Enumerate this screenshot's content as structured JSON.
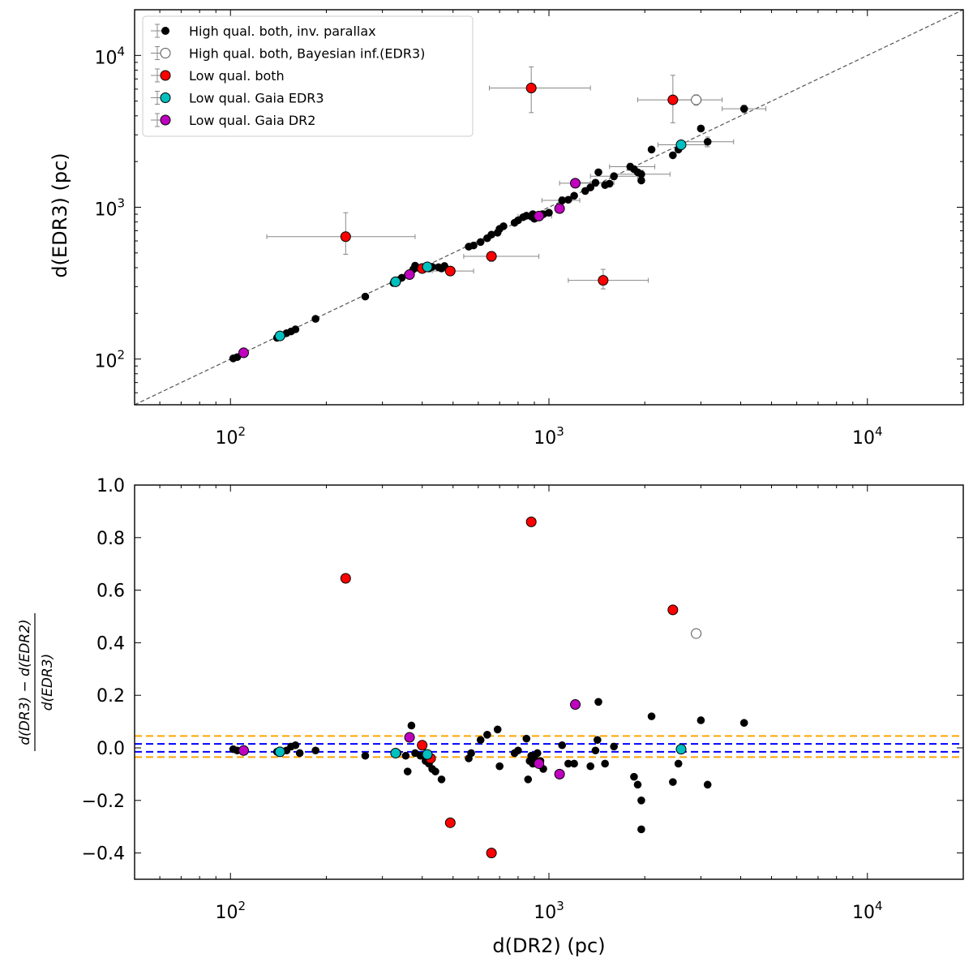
{
  "chart_data": [
    {
      "type": "scatter",
      "panel": "top",
      "xlabel": "d(DR2) (pc)",
      "ylabel": "d(EDR3) (pc)",
      "xscale": "log",
      "yscale": "log",
      "xlim": [
        50,
        20000
      ],
      "ylim": [
        50,
        20000
      ],
      "x_tick_labels": [
        {
          "base": "10",
          "exp": "2",
          "value": 100
        },
        {
          "base": "10",
          "exp": "3",
          "value": 1000
        },
        {
          "base": "10",
          "exp": "4",
          "value": 10000
        }
      ],
      "y_tick_labels": [
        {
          "base": "10",
          "exp": "2",
          "value": 100
        },
        {
          "base": "10",
          "exp": "3",
          "value": 1000
        },
        {
          "base": "10",
          "exp": "4",
          "value": 10000
        }
      ],
      "reference_line": "y = x (dashed)",
      "legend": {
        "placement": "top-left",
        "entries": [
          {
            "label": "High qual. both, inv. parallax",
            "color": "#000000",
            "marker": "small-filled"
          },
          {
            "label": "High qual. both, Bayesian inf.(EDR3)",
            "color": "#ffffff",
            "marker": "open"
          },
          {
            "label": "Low qual. both",
            "color": "#ff0000",
            "marker": "filled"
          },
          {
            "label": "Low qual. Gaia EDR3",
            "color": "#00bfbf",
            "marker": "filled"
          },
          {
            "label": "Low qual. Gaia DR2",
            "color": "#bf00bf",
            "marker": "filled"
          }
        ]
      },
      "series": [
        {
          "name": "High qual. both, inv. parallax",
          "color": "#000000",
          "points": [
            [
              102,
              101
            ],
            [
              105,
              103
            ],
            [
              110,
              108
            ],
            [
              140,
              138
            ],
            [
              145,
              143
            ],
            [
              150,
              148
            ],
            [
              155,
              152
            ],
            [
              160,
              157
            ],
            [
              185,
              184
            ],
            [
              265,
              258
            ],
            [
              325,
              317
            ],
            [
              335,
              330
            ],
            [
              345,
              343
            ],
            [
              360,
              358
            ],
            [
              368,
              364
            ],
            [
              375,
              390
            ],
            [
              380,
              412
            ],
            [
              385,
              400
            ],
            [
              395,
              398
            ],
            [
              410,
              400
            ],
            [
              420,
              395
            ],
            [
              430,
              405
            ],
            [
              450,
              403
            ],
            [
              460,
              395
            ],
            [
              470,
              410
            ],
            [
              560,
              550
            ],
            [
              580,
              560
            ],
            [
              610,
              590
            ],
            [
              640,
              625
            ],
            [
              660,
              660
            ],
            [
              690,
              680
            ],
            [
              700,
              720
            ],
            [
              720,
              750
            ],
            [
              780,
              790
            ],
            [
              800,
              820
            ],
            [
              830,
              860
            ],
            [
              850,
              880
            ],
            [
              880,
              870
            ],
            [
              890,
              900
            ],
            [
              900,
              840
            ],
            [
              920,
              880
            ],
            [
              960,
              900
            ],
            [
              1000,
              920
            ],
            [
              1100,
              1110
            ],
            [
              1150,
              1120
            ],
            [
              1200,
              1190
            ],
            [
              1300,
              1280
            ],
            [
              1350,
              1350
            ],
            [
              1400,
              1450
            ],
            [
              1430,
              1700
            ],
            [
              1500,
              1400
            ],
            [
              1550,
              1430
            ],
            [
              1600,
              1600
            ],
            [
              1800,
              1850
            ],
            [
              1850,
              1780
            ],
            [
              1900,
              1700
            ],
            [
              1950,
              1650
            ],
            [
              1950,
              1500
            ],
            [
              2100,
              2400
            ],
            [
              2450,
              2200
            ],
            [
              2550,
              2400
            ],
            [
              3000,
              3300
            ],
            [
              3150,
              2700
            ],
            [
              4100,
              4450
            ]
          ]
        },
        {
          "name": "High qual. both, Bayesian inf.(EDR3)",
          "color": "#ffffff",
          "points": [
            [
              2900,
              5100
            ]
          ]
        },
        {
          "name": "Low qual. both",
          "color": "#ff0000",
          "points": [
            [
              230,
              640
            ],
            [
              400,
              395
            ],
            [
              490,
              380
            ],
            [
              660,
              475
            ],
            [
              880,
              6100
            ],
            [
              1480,
              330
            ],
            [
              2450,
              5100
            ]
          ]
        },
        {
          "name": "Low qual. Gaia EDR3",
          "color": "#00bfbf",
          "points": [
            [
              143,
              142
            ],
            [
              330,
              323
            ],
            [
              415,
              405
            ],
            [
              2600,
              2580
            ]
          ]
        },
        {
          "name": "Low qual. Gaia DR2",
          "color": "#bf00bf",
          "points": [
            [
              110,
              110
            ],
            [
              365,
              360
            ],
            [
              930,
              875
            ],
            [
              1080,
              980
            ],
            [
              1210,
              1440
            ]
          ]
        }
      ],
      "error_bars": [
        {
          "x": 230,
          "y": 640,
          "xlo": 130,
          "xhi": 380,
          "ylo": 490,
          "yhi": 920
        },
        {
          "x": 880,
          "y": 6100,
          "xlo": 650,
          "xhi": 1350,
          "ylo": 4200,
          "yhi": 8400
        },
        {
          "x": 2450,
          "y": 5100,
          "xlo": 1900,
          "xhi": 3000,
          "ylo": 3600,
          "yhi": 7400
        },
        {
          "x": 2900,
          "y": 5100,
          "xlo": 2450,
          "xhi": 3500,
          "ylo": 4700,
          "yhi": 5500
        },
        {
          "x": 1480,
          "y": 330,
          "xlo": 1150,
          "xhi": 2050,
          "ylo": 290,
          "yhi": 390
        },
        {
          "x": 660,
          "y": 475,
          "xlo": 540,
          "xhi": 930,
          "ylo": 440,
          "yhi": 510
        },
        {
          "x": 490,
          "y": 380,
          "xlo": 430,
          "xhi": 580,
          "ylo": 360,
          "yhi": 400
        },
        {
          "x": 4100,
          "y": 4450,
          "xlo": 3500,
          "xhi": 4800,
          "ylo": 4200,
          "yhi": 4700
        },
        {
          "x": 3150,
          "y": 2700,
          "xlo": 2600,
          "xhi": 3800,
          "ylo": 2500,
          "yhi": 2900
        },
        {
          "x": 2600,
          "y": 2580,
          "xlo": 2200,
          "xhi": 3100,
          "ylo": 2400,
          "yhi": 2750
        },
        {
          "x": 1950,
          "y": 1650,
          "xlo": 1600,
          "xhi": 2400,
          "ylo": 1550,
          "yhi": 1750
        },
        {
          "x": 1800,
          "y": 1850,
          "xlo": 1550,
          "xhi": 2150,
          "ylo": 1750,
          "yhi": 1950
        },
        {
          "x": 1600,
          "y": 1600,
          "xlo": 1350,
          "xhi": 1900,
          "ylo": 1520,
          "yhi": 1680
        },
        {
          "x": 1400,
          "y": 1450,
          "xlo": 1200,
          "xhi": 1600,
          "ylo": 1380,
          "yhi": 1520
        },
        {
          "x": 1210,
          "y": 1440,
          "xlo": 1080,
          "xhi": 1350,
          "ylo": 1380,
          "yhi": 1500
        },
        {
          "x": 1100,
          "y": 1110,
          "xlo": 950,
          "xhi": 1250,
          "ylo": 1050,
          "yhi": 1170
        },
        {
          "x": 930,
          "y": 875,
          "xlo": 840,
          "xhi": 1020,
          "ylo": 840,
          "yhi": 910
        },
        {
          "x": 880,
          "y": 870,
          "xlo": 800,
          "xhi": 960,
          "ylo": 840,
          "yhi": 900
        }
      ]
    },
    {
      "type": "scatter",
      "panel": "bottom",
      "xlabel": "d(DR2) (pc)",
      "ylabel": "(d(DR3) − d(EDR2)) / d(EDR3)",
      "ylabel_numerator": "d(DR3) − d(EDR2)",
      "ylabel_denominator": "d(EDR3)",
      "xscale": "log",
      "xlim": [
        50,
        20000
      ],
      "ylim": [
        -0.5,
        1.0
      ],
      "x_tick_labels": [
        {
          "base": "10",
          "exp": "2",
          "value": 100
        },
        {
          "base": "10",
          "exp": "3",
          "value": 1000
        },
        {
          "base": "10",
          "exp": "4",
          "value": 10000
        }
      ],
      "y_tick_labels": [
        "−0.4",
        "−0.2",
        "0.0",
        "0.2",
        "0.4",
        "0.6",
        "0.8",
        "1.0"
      ],
      "y_tick_values": [
        -0.4,
        -0.2,
        0.0,
        0.2,
        0.4,
        0.6,
        0.8,
        1.0
      ],
      "hlines": [
        {
          "y": 0.045,
          "color": "#ffa500",
          "style": "dashed"
        },
        {
          "y": 0.015,
          "color": "#0000ff",
          "style": "dashed"
        },
        {
          "y": -0.015,
          "color": "#0000ff",
          "style": "dashed"
        },
        {
          "y": -0.035,
          "color": "#ffa500",
          "style": "dashed"
        }
      ],
      "series": [
        {
          "name": "High qual. both, inv. parallax",
          "color": "#000000",
          "points": [
            [
              102,
              -0.005
            ],
            [
              105,
              -0.01
            ],
            [
              140,
              -0.015
            ],
            [
              150,
              -0.01
            ],
            [
              155,
              0.005
            ],
            [
              160,
              0.01
            ],
            [
              165,
              -0.02
            ],
            [
              185,
              -0.01
            ],
            [
              265,
              -0.03
            ],
            [
              335,
              -0.02
            ],
            [
              355,
              -0.03
            ],
            [
              360,
              -0.09
            ],
            [
              370,
              0.085
            ],
            [
              380,
              -0.02
            ],
            [
              395,
              -0.03
            ],
            [
              410,
              -0.05
            ],
            [
              420,
              -0.06
            ],
            [
              430,
              -0.08
            ],
            [
              440,
              -0.09
            ],
            [
              460,
              -0.12
            ],
            [
              560,
              -0.04
            ],
            [
              570,
              -0.02
            ],
            [
              610,
              0.03
            ],
            [
              640,
              0.05
            ],
            [
              690,
              0.07
            ],
            [
              700,
              -0.07
            ],
            [
              780,
              -0.02
            ],
            [
              800,
              -0.01
            ],
            [
              850,
              0.035
            ],
            [
              860,
              -0.12
            ],
            [
              870,
              -0.05
            ],
            [
              880,
              -0.03
            ],
            [
              890,
              -0.06
            ],
            [
              900,
              -0.04
            ],
            [
              920,
              -0.02
            ],
            [
              940,
              -0.05
            ],
            [
              960,
              -0.08
            ],
            [
              1100,
              0.01
            ],
            [
              1150,
              -0.06
            ],
            [
              1200,
              -0.06
            ],
            [
              1350,
              -0.07
            ],
            [
              1400,
              -0.01
            ],
            [
              1420,
              0.03
            ],
            [
              1430,
              0.175
            ],
            [
              1500,
              -0.06
            ],
            [
              1600,
              0.005
            ],
            [
              1850,
              -0.11
            ],
            [
              1900,
              -0.14
            ],
            [
              1950,
              -0.2
            ],
            [
              1950,
              -0.31
            ],
            [
              2100,
              0.12
            ],
            [
              2450,
              -0.13
            ],
            [
              2550,
              -0.06
            ],
            [
              3000,
              0.105
            ],
            [
              3150,
              -0.14
            ],
            [
              4100,
              0.095
            ]
          ]
        },
        {
          "name": "High qual. both, Bayesian inf.(EDR3)",
          "color": "#ffffff",
          "points": [
            [
              2900,
              0.435
            ]
          ]
        },
        {
          "name": "Low qual. both",
          "color": "#ff0000",
          "points": [
            [
              230,
              0.645
            ],
            [
              400,
              0.01
            ],
            [
              425,
              -0.04
            ],
            [
              490,
              -0.285
            ],
            [
              660,
              -0.4
            ],
            [
              880,
              0.86
            ],
            [
              2450,
              0.525
            ]
          ]
        },
        {
          "name": "Low qual. Gaia EDR3",
          "color": "#00bfbf",
          "points": [
            [
              143,
              -0.015
            ],
            [
              330,
              -0.02
            ],
            [
              415,
              -0.025
            ],
            [
              2600,
              -0.005
            ]
          ]
        },
        {
          "name": "Low qual. Gaia DR2",
          "color": "#bf00bf",
          "points": [
            [
              110,
              -0.01
            ],
            [
              365,
              0.04
            ],
            [
              930,
              -0.06
            ],
            [
              1080,
              -0.1
            ],
            [
              1210,
              0.165
            ]
          ]
        }
      ]
    }
  ]
}
